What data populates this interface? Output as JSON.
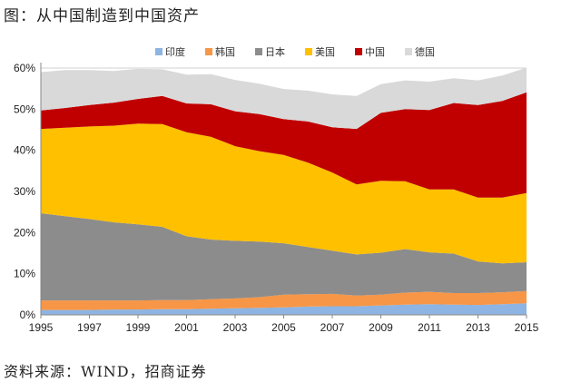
{
  "title": "图：从中国制造到中国资产",
  "source": "资料来源：WIND，招商证券",
  "chart_data": {
    "type": "area",
    "stacked": true,
    "x": [
      1995,
      1996,
      1997,
      1998,
      1999,
      2000,
      2001,
      2002,
      2003,
      2004,
      2005,
      2006,
      2007,
      2008,
      2009,
      2010,
      2011,
      2012,
      2013,
      2014,
      2015
    ],
    "x_ticks": [
      "1995",
      "1997",
      "1999",
      "2001",
      "2003",
      "2005",
      "2007",
      "2009",
      "2011",
      "2013",
      "2015"
    ],
    "y_ticks": [
      "0%",
      "10%",
      "20%",
      "30%",
      "40%",
      "50%",
      "60%"
    ],
    "ylim": [
      0,
      60
    ],
    "legend_position": "top",
    "series": [
      {
        "name": "印度",
        "color": "#8DB4E2",
        "values": [
          1.2,
          1.2,
          1.2,
          1.3,
          1.3,
          1.4,
          1.4,
          1.5,
          1.6,
          1.7,
          1.8,
          2.0,
          2.1,
          2.1,
          2.3,
          2.5,
          2.6,
          2.5,
          2.4,
          2.6,
          2.8
        ]
      },
      {
        "name": "韩国",
        "color": "#F79646",
        "values": [
          2.3,
          2.3,
          2.3,
          2.2,
          2.2,
          2.2,
          2.2,
          2.3,
          2.4,
          2.6,
          3.1,
          3.0,
          3.0,
          2.6,
          2.6,
          2.9,
          3.0,
          2.8,
          2.9,
          2.9,
          3.0
        ]
      },
      {
        "name": "日本",
        "color": "#8C8C8C",
        "values": [
          21.2,
          20.5,
          19.8,
          19.0,
          18.5,
          17.8,
          15.5,
          14.5,
          14.0,
          13.5,
          12.5,
          11.5,
          10.5,
          10.0,
          10.2,
          10.6,
          9.6,
          9.6,
          7.7,
          7.0,
          7.0
        ]
      },
      {
        "name": "美国",
        "color": "#FFC000",
        "values": [
          20.5,
          21.5,
          22.5,
          23.5,
          24.5,
          25.0,
          25.3,
          25.0,
          23.0,
          22.0,
          21.5,
          20.5,
          19.0,
          17.0,
          17.5,
          16.5,
          15.3,
          15.6,
          15.5,
          16.0,
          16.8
        ]
      },
      {
        "name": "中国",
        "color": "#C00000",
        "values": [
          4.5,
          4.8,
          5.2,
          5.6,
          6.0,
          6.8,
          7.0,
          7.9,
          8.5,
          9.0,
          8.7,
          10.0,
          11.0,
          13.5,
          16.5,
          17.5,
          19.3,
          21.0,
          22.5,
          23.5,
          24.5
        ]
      },
      {
        "name": "德国",
        "color": "#D9D9D9",
        "values": [
          9.3,
          9.2,
          8.5,
          7.7,
          7.3,
          6.5,
          7.0,
          7.3,
          7.6,
          7.4,
          7.3,
          7.5,
          8.0,
          8.0,
          7.0,
          7.0,
          6.9,
          6.0,
          6.0,
          6.2,
          6.0
        ]
      }
    ]
  }
}
